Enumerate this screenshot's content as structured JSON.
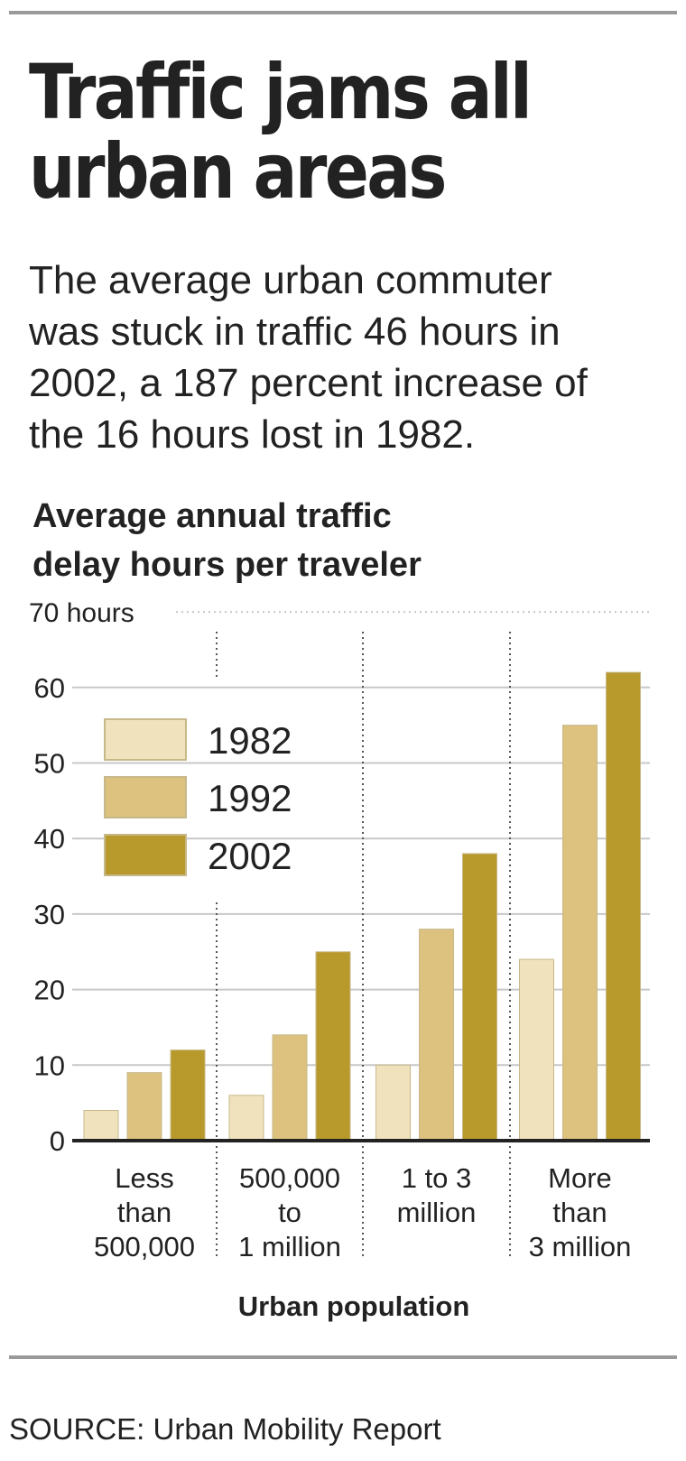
{
  "header": {
    "title_lines": [
      "Traffic jams all",
      "urban areas"
    ],
    "dek_lines": [
      "The average urban commuter",
      "was stuck in traffic 46 hours in",
      "2002, a 187 percent increase of",
      "the 16 hours lost in 1982."
    ]
  },
  "chart_data": {
    "type": "bar",
    "title": "Average annual traffic delay hours per traveler",
    "title_lines": [
      "Average annual traffic",
      "delay hours per traveler"
    ],
    "xlabel": "Urban population",
    "ylabel": "",
    "ylim": [
      0,
      70
    ],
    "yticks": [
      0,
      10,
      20,
      30,
      40,
      50,
      60,
      70
    ],
    "ytick_labels": [
      "0",
      "10",
      "20",
      "30",
      "40",
      "50",
      "60",
      "70 hours"
    ],
    "categories": [
      "Less than 500,000",
      "500,000 to 1 million",
      "1 to 3 million",
      "More than 3 million"
    ],
    "category_lines": [
      [
        "Less",
        "than",
        "500,000"
      ],
      [
        "500,000",
        "to",
        "1 million"
      ],
      [
        "1 to 3",
        "million"
      ],
      [
        "More",
        "than",
        "3 million"
      ]
    ],
    "series": [
      {
        "name": "1982",
        "color": "#efe2bd",
        "values": [
          4,
          6,
          10,
          24
        ]
      },
      {
        "name": "1992",
        "color": "#dcc27e",
        "values": [
          9,
          14,
          28,
          55
        ]
      },
      {
        "name": "2002",
        "color": "#b89a2c",
        "values": [
          12,
          25,
          38,
          62
        ]
      }
    ],
    "grid": true,
    "legend_placement": "upper-left"
  },
  "footer": {
    "source": "SOURCE: Urban Mobility Report"
  }
}
